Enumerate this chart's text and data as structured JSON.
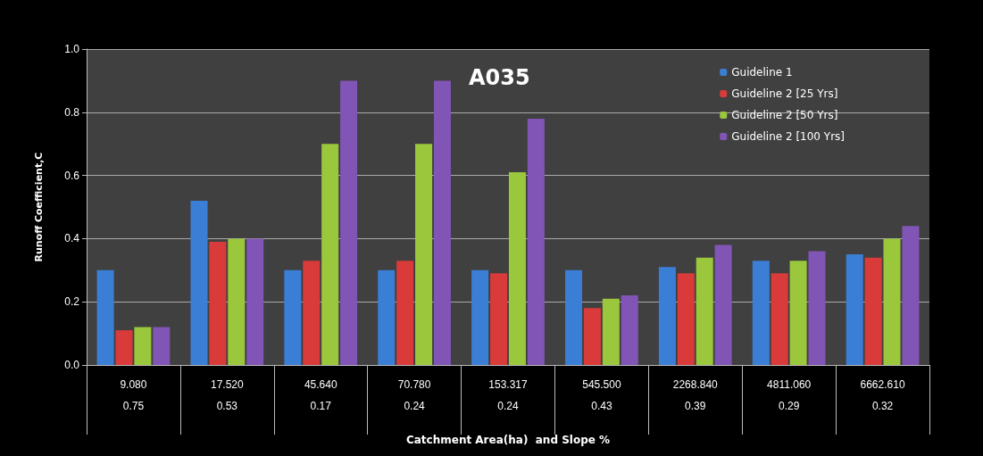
{
  "chart_data": {
    "type": "bar",
    "title": "A035",
    "xlabel": "Catchment Area(ha)  and Slope %",
    "ylabel": "Runoff Coefficient,C",
    "categories": [
      "9.080\n\n0.75",
      "17.520\n\n0.53",
      "45.640\n\n0.17",
      "70.780\n\n0.24",
      "153.317\n\n0.24",
      "545.500\n\n0.43",
      "2268.840\n\n0.39",
      "4811.060\n\n0.29",
      "6662.610\n\n0.32"
    ],
    "series": [
      {
        "name": "Guideline 1",
        "color": "#3a7fd5",
        "values": [
          0.3,
          0.52,
          0.3,
          0.3,
          0.3,
          0.3,
          0.31,
          0.33,
          0.35
        ]
      },
      {
        "name": "Guideline 2 [25 Yrs]",
        "color": "#d93a3a",
        "values": [
          0.11,
          0.39,
          0.33,
          0.33,
          0.29,
          0.18,
          0.29,
          0.29,
          0.34
        ]
      },
      {
        "name": "Guideline 2 [50 Yrs]",
        "color": "#9ac73c",
        "values": [
          0.12,
          0.4,
          0.7,
          0.7,
          0.61,
          0.21,
          0.34,
          0.33,
          0.4
        ]
      },
      {
        "name": "Guideline 2 [100 Yrs]",
        "color": "#8155b5",
        "values": [
          0.12,
          0.4,
          0.9,
          0.9,
          0.78,
          0.22,
          0.38,
          0.36,
          0.44
        ]
      }
    ],
    "ylim": [
      0,
      1
    ],
    "yticks": [
      {
        "value": 0,
        "label": "0.0"
      },
      {
        "value": 0.2,
        "label": "0.2"
      },
      {
        "value": 0.4,
        "label": "0.4"
      },
      {
        "value": 0.6,
        "label": "0.6"
      },
      {
        "value": 0.8,
        "label": "0.8"
      },
      {
        "value": 1,
        "label": "1.0"
      }
    ],
    "grid": "y",
    "legend": "top right"
  }
}
